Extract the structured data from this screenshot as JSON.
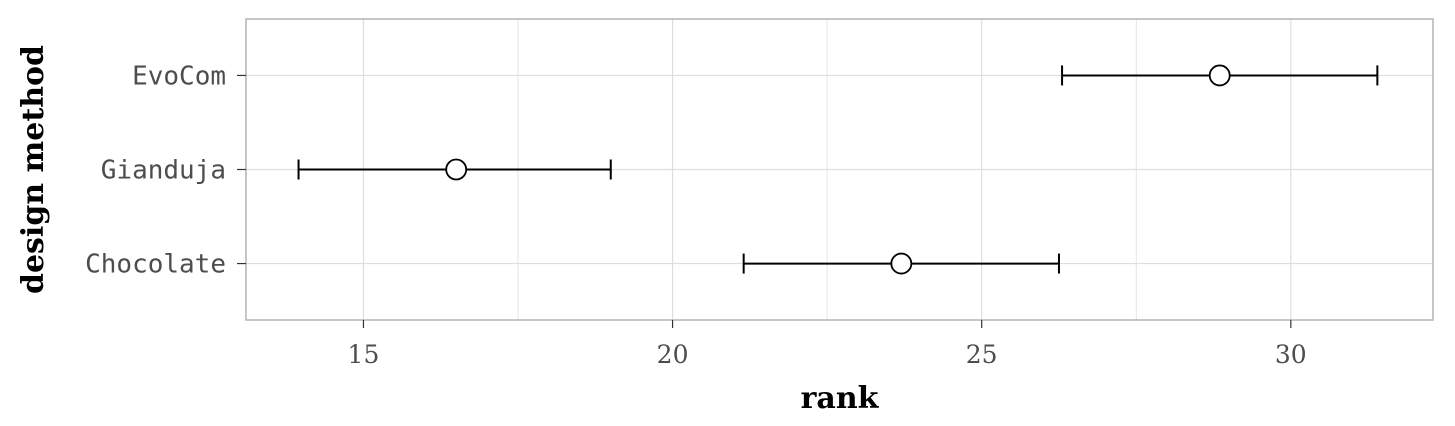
{
  "chart_data": {
    "type": "scatter",
    "orientation": "horizontal",
    "title": "",
    "xlabel": "rank",
    "ylabel": "design method",
    "xlim": [
      13.1,
      32.3
    ],
    "x_ticks": [
      15,
      20,
      25,
      30
    ],
    "x_tick_labels": [
      "15",
      "20",
      "25",
      "30"
    ],
    "categories": [
      "Chocolate",
      "Gianduja",
      "EvoCom"
    ],
    "points": [
      {
        "category": "Chocolate",
        "x": 23.7,
        "lower": 21.15,
        "upper": 26.25
      },
      {
        "category": "Gianduja",
        "x": 16.5,
        "lower": 13.95,
        "upper": 19.0
      },
      {
        "category": "EvoCom",
        "x": 28.85,
        "lower": 26.3,
        "upper": 31.4
      }
    ],
    "grid": true,
    "legend": "none",
    "colors": {
      "panel_border": "#b3b3b3",
      "grid": "#dedede",
      "marker_fill": "#ffffff",
      "marker_stroke": "#000000",
      "errorbar": "#000000"
    }
  }
}
